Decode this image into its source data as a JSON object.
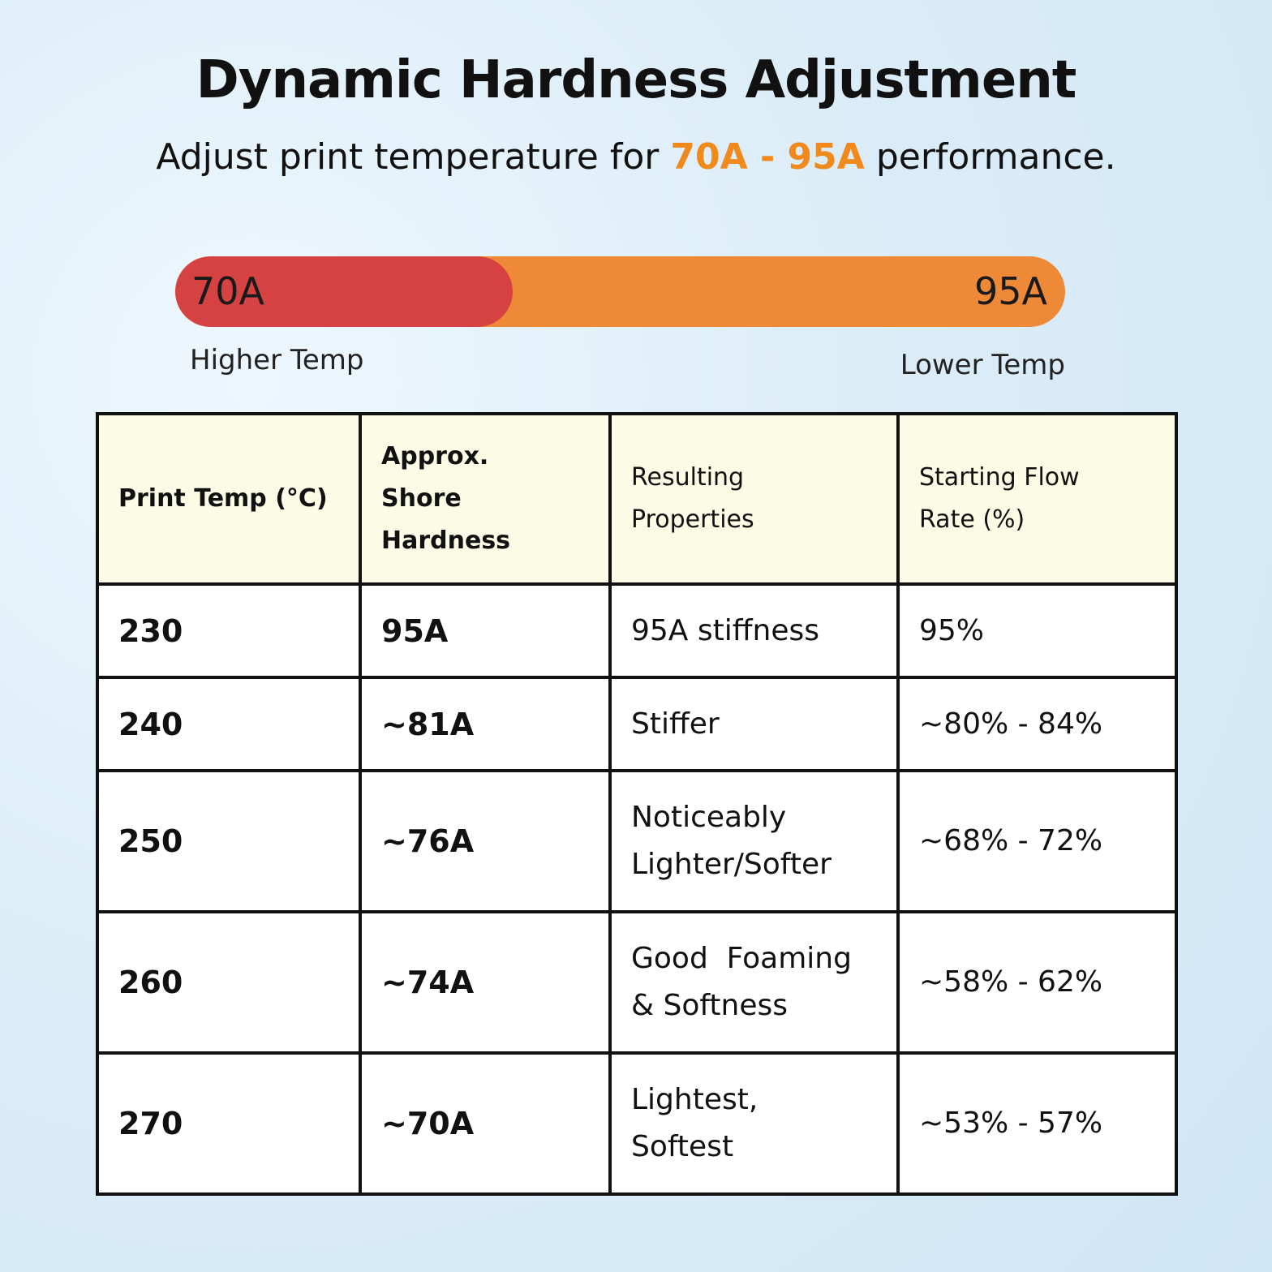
{
  "header": {
    "title": "Dynamic Hardness Adjustment",
    "subtitle": {
      "before": "Adjust print temperature for",
      "highlight": "70A - 95A",
      "after": "performance."
    }
  },
  "scale": {
    "left_label": "70A",
    "right_label": "95A",
    "left_caption": "Higher Temp",
    "right_caption": "Lower Temp"
  },
  "table": {
    "header": [
      [
        "Print Temp (°C)"
      ],
      [
        "Approx.",
        "Shore",
        "Hardness"
      ],
      [
        "Resulting",
        "Properties"
      ],
      [
        "Starting Flow",
        "Rate (%)"
      ]
    ],
    "rows": [
      [
        [
          "230"
        ],
        [
          "95A"
        ],
        [
          "95A stiffness"
        ],
        [
          "95%"
        ]
      ],
      [
        [
          "240"
        ],
        [
          "~81A"
        ],
        [
          "Stiffer"
        ],
        [
          "~80% - 84%"
        ]
      ],
      [
        [
          "250"
        ],
        [
          "~76A"
        ],
        [
          "Noticeably",
          "Lighter/Softer"
        ],
        [
          "~68% - 72%"
        ]
      ],
      [
        [
          "260"
        ],
        [
          "~74A"
        ],
        [
          "Good  Foaming",
          "& Softness"
        ],
        [
          "~58% - 62%"
        ]
      ],
      [
        [
          "270"
        ],
        [
          "~70A"
        ],
        [
          "Lightest,",
          "Softest"
        ],
        [
          "~53% - 57%"
        ]
      ]
    ]
  }
}
